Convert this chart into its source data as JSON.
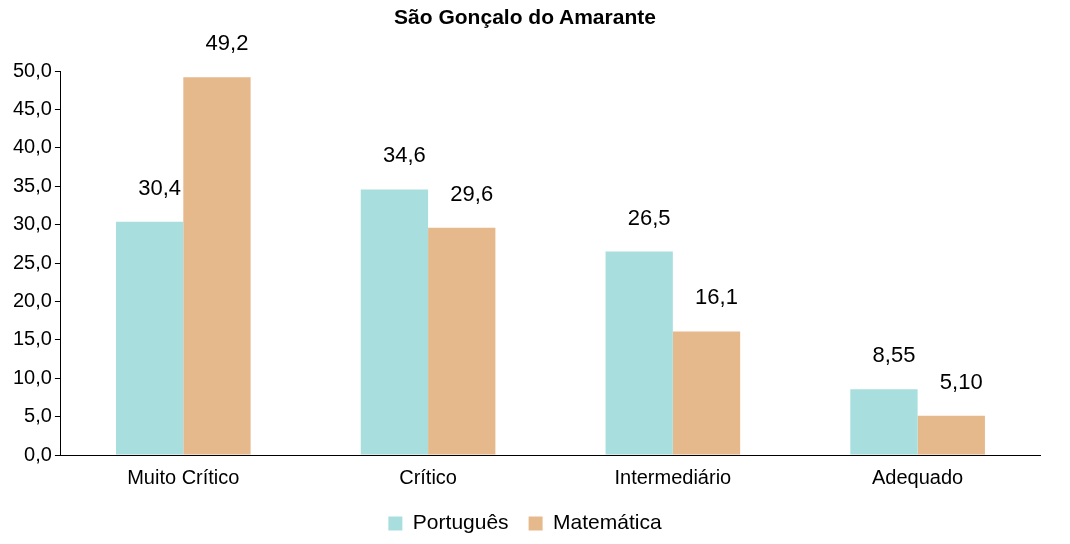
{
  "chart_data": {
    "type": "bar",
    "title": "São Gonçalo do Amarante",
    "categories": [
      "Muito Crítico",
      "Crítico",
      "Intermediário",
      "Adequado"
    ],
    "series": [
      {
        "name": "Português",
        "color": "#a9dede",
        "values": [
          30.4,
          34.6,
          26.5,
          8.55
        ],
        "value_labels": [
          "30,4",
          "34,6",
          "26,5",
          "8,55"
        ]
      },
      {
        "name": "Matemática",
        "color": "#e6b98c",
        "values": [
          49.2,
          29.6,
          16.1,
          5.1
        ],
        "value_labels": [
          "49,2",
          "29,6",
          "16,1",
          "5,10"
        ]
      }
    ],
    "ylim": [
      0,
      50
    ],
    "yticks": [
      {
        "value": 0,
        "label": "0,0"
      },
      {
        "value": 5,
        "label": "5,0"
      },
      {
        "value": 10,
        "label": "10,0"
      },
      {
        "value": 15,
        "label": "15,0"
      },
      {
        "value": 20,
        "label": "20,0"
      },
      {
        "value": 25,
        "label": "25,0"
      },
      {
        "value": 30,
        "label": "30,0"
      },
      {
        "value": 35,
        "label": "35,0"
      },
      {
        "value": 40,
        "label": "40,0"
      },
      {
        "value": 45,
        "label": "45,0"
      },
      {
        "value": 50,
        "label": "50,0"
      }
    ],
    "grid": false,
    "legend": "bottom"
  }
}
